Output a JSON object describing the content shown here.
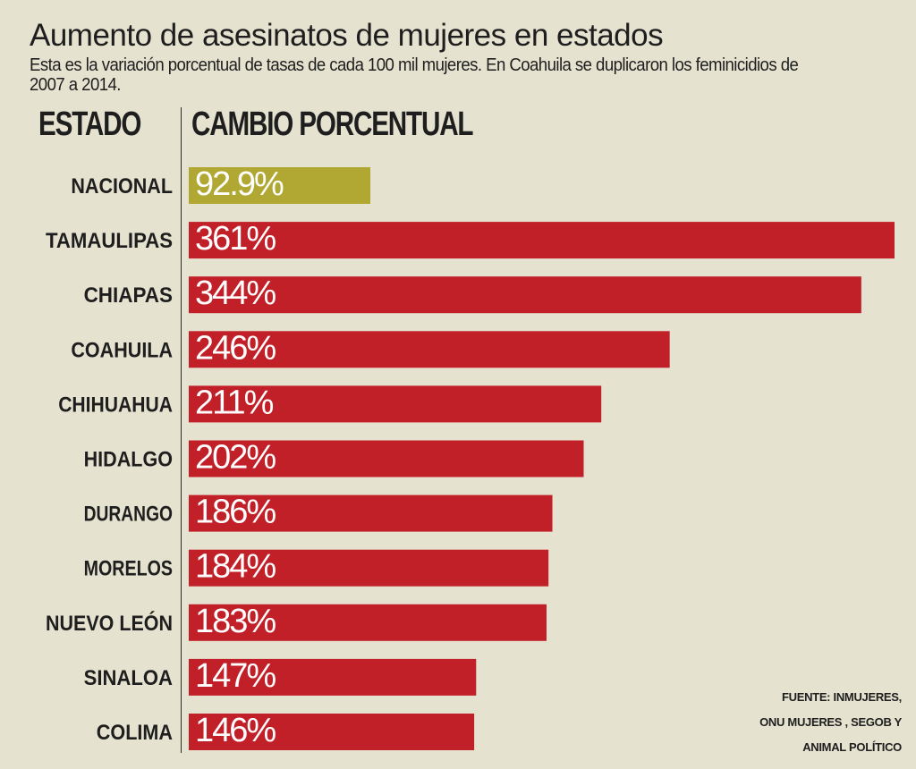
{
  "title": "Aumento de asesinatos de mujeres en estados",
  "subtitle": "Esta es la variación porcentual de tasas de cada 100 mil mujeres. En Coahuila se duplicaron los feminicidios de 2007 a 2014.",
  "headers": {
    "estado": "ESTADO",
    "cambio": "CAMBIO PORCENTUAL"
  },
  "source_lines": [
    "FUENTE: INMUJERES,",
    "ONU MUJERES , SEGOB Y",
    "ANIMAL POLÍTICO"
  ],
  "colors": {
    "highlight": "#b0a833",
    "bar": "#c22028",
    "background": "#e6e2d0",
    "label_text": "#ffffff"
  },
  "chart_data": {
    "type": "bar",
    "orientation": "horizontal",
    "title": "Aumento de asesinatos de mujeres en estados",
    "xlabel": "CAMBIO PORCENTUAL",
    "ylabel": "ESTADO",
    "unit": "%",
    "xlim": [
      0,
      361
    ],
    "grid": false,
    "categories": [
      "NACIONAL",
      "TAMAULIPAS",
      "CHIAPAS",
      "COAHUILA",
      "CHIHUAHUA",
      "HIDALGO",
      "DURANGO",
      "MORELOS",
      "NUEVO LEÓN",
      "SINALOA",
      "COLIMA"
    ],
    "values": [
      92.9,
      361,
      344,
      246,
      211,
      202,
      186,
      184,
      183,
      147,
      146
    ],
    "labels": [
      "92.9%",
      "361%",
      "344%",
      "246%",
      "211%",
      "202%",
      "186%",
      "184%",
      "183%",
      "147%",
      "146%"
    ],
    "highlighted": [
      "NACIONAL"
    ]
  }
}
